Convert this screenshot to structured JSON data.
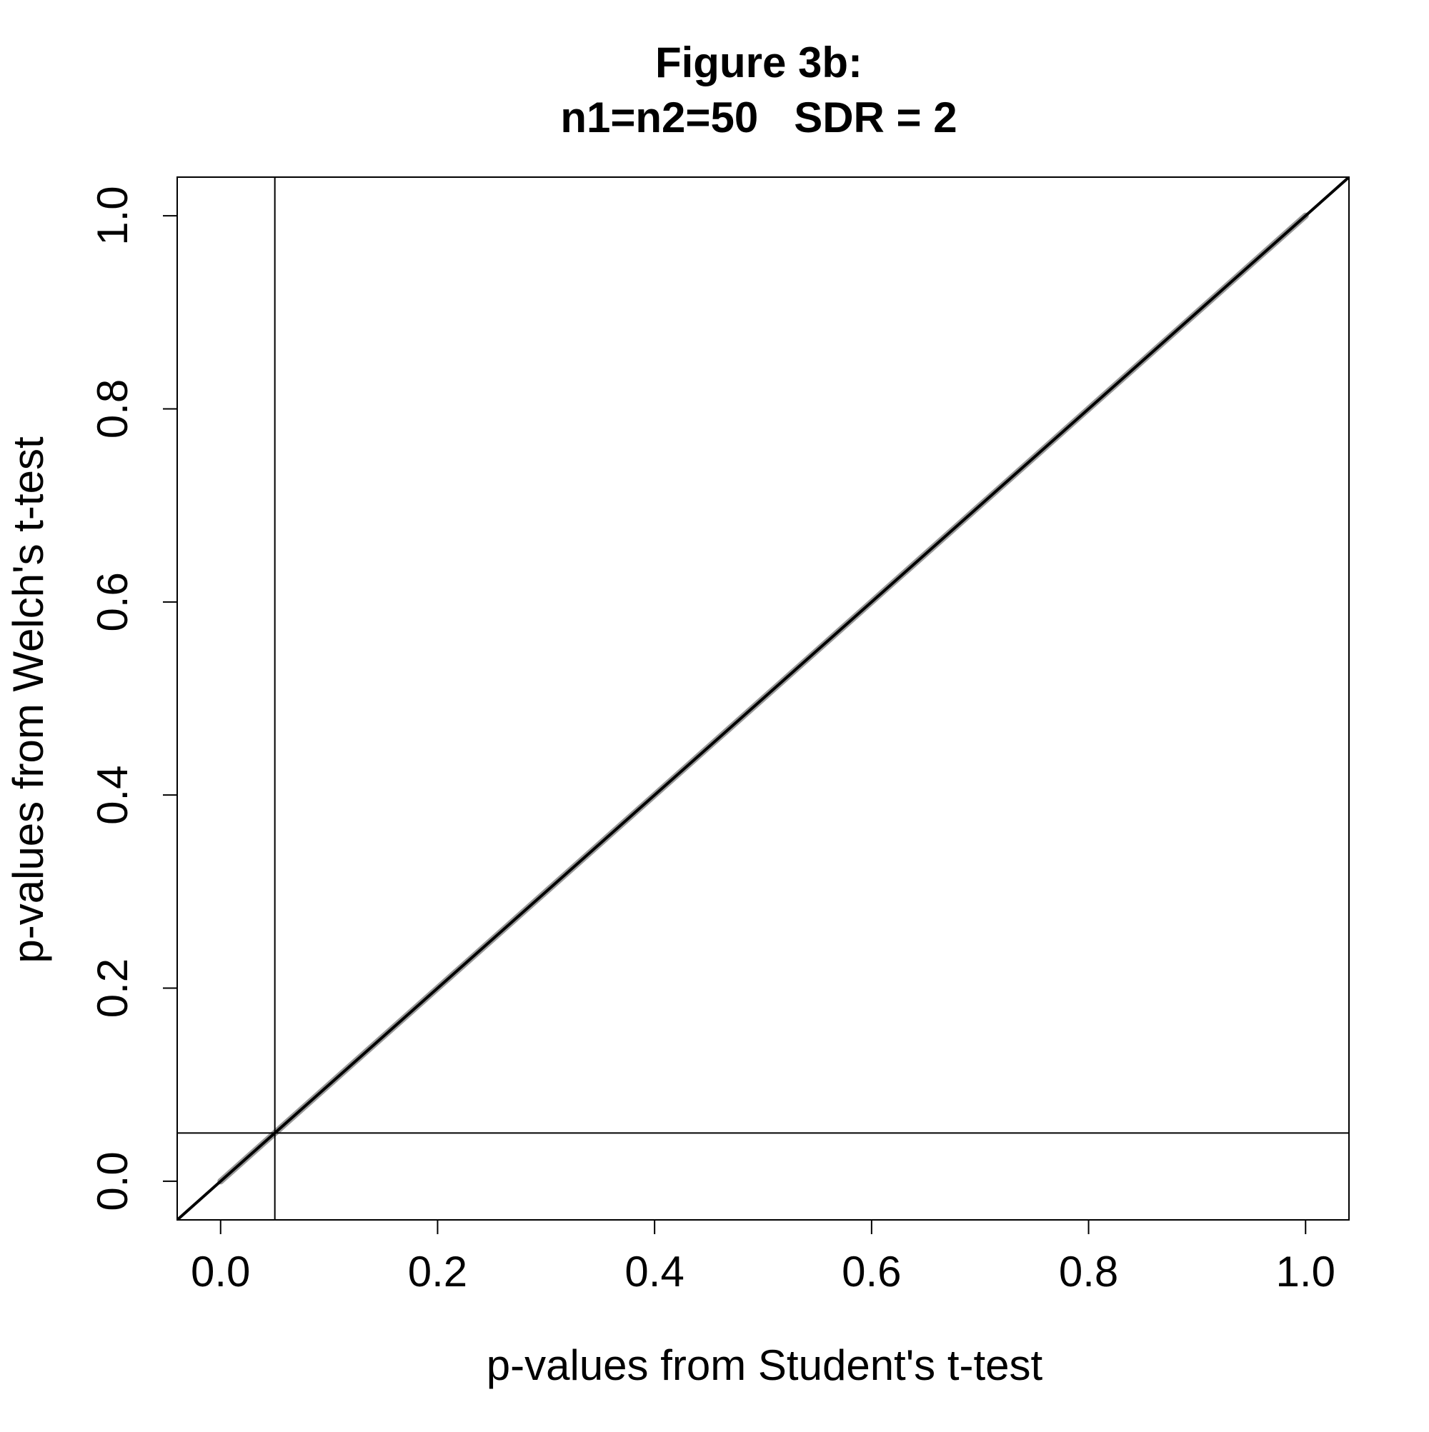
{
  "chart_data": {
    "type": "line",
    "title": "Figure 3b:",
    "subtitle": "n1=n2=50   SDR = 2",
    "xlabel": "p-values from Student's t-test",
    "ylabel": "p-values from Welch's t-test",
    "xlim": [
      -0.04,
      1.04
    ],
    "ylim": [
      -0.04,
      1.04
    ],
    "x_ticks": [
      0.0,
      0.2,
      0.4,
      0.6,
      0.8,
      1.0
    ],
    "x_tick_labels": [
      "0.0",
      "0.2",
      "0.4",
      "0.6",
      "0.8",
      "1.0"
    ],
    "y_ticks": [
      0.0,
      0.2,
      0.4,
      0.6,
      0.8,
      1.0
    ],
    "y_tick_labels": [
      "0.0",
      "0.2",
      "0.4",
      "0.6",
      "0.8",
      "1.0"
    ],
    "grid": false,
    "series": [
      {
        "x": [
          0.0,
          0.05,
          0.1,
          0.2,
          0.3,
          0.4,
          0.5,
          0.6,
          0.7,
          0.8,
          0.9,
          1.0
        ],
        "y": [
          0.0,
          0.05,
          0.1,
          0.2,
          0.3,
          0.4,
          0.5,
          0.6,
          0.7,
          0.8,
          0.9,
          1.0
        ],
        "color": "#999999"
      }
    ],
    "reference_lines": {
      "diagonal": {
        "slope": 1,
        "intercept": 0,
        "color": "#000000"
      },
      "vertical": {
        "x": 0.05,
        "color": "#000000"
      },
      "horizontal": {
        "y": 0.05,
        "color": "#000000"
      }
    }
  }
}
